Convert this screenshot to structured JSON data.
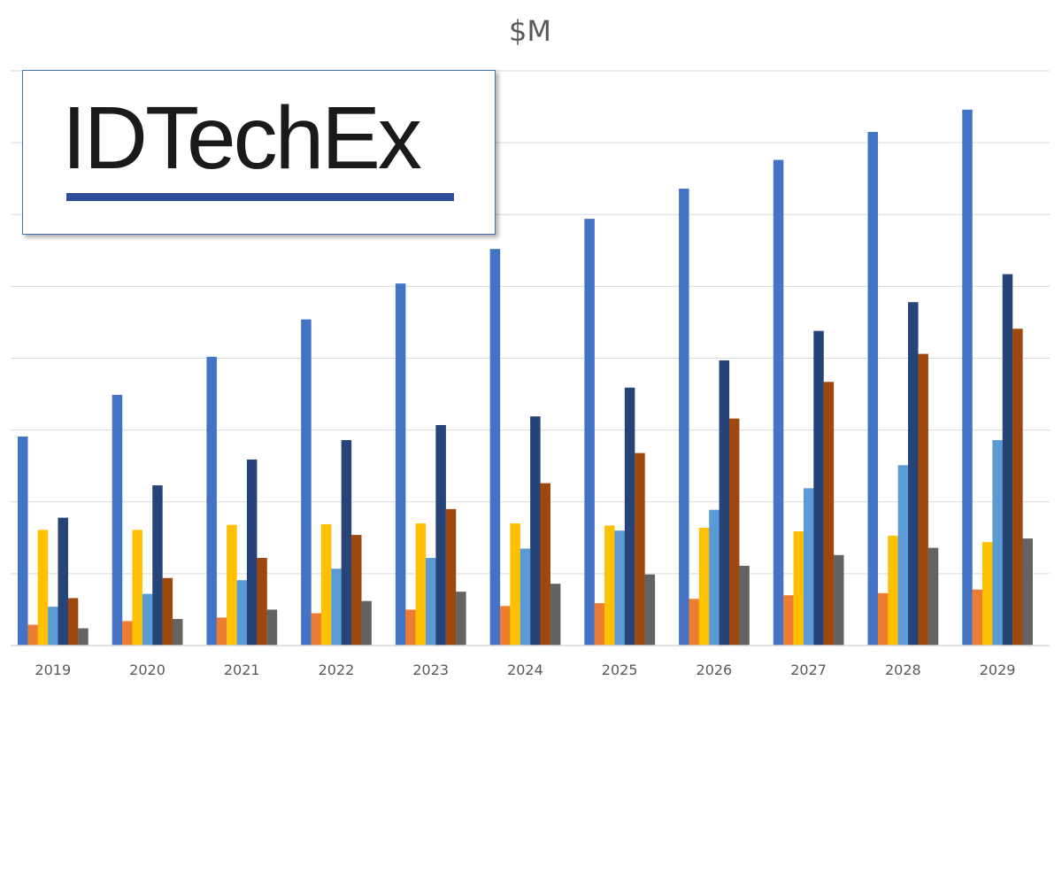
{
  "logo": {
    "text": "IDTechEx",
    "underline_color": "#2e4d9b",
    "border_color": "#4a6fb5"
  },
  "chart_data": {
    "type": "bar",
    "title": "$M",
    "xlabel": "",
    "ylabel": "",
    "categories": [
      "2019",
      "2020",
      "2021",
      "2022",
      "2023",
      "2024",
      "2025",
      "2026",
      "2027",
      "2028",
      "2029"
    ],
    "ylim": [
      0,
      8
    ],
    "gridlines": true,
    "y_tick_labels_shown": false,
    "legend": "none",
    "series": [
      {
        "color": "#4472c4",
        "values": [
          2.91,
          3.49,
          4.02,
          4.54,
          5.04,
          5.52,
          5.94,
          6.36,
          6.76,
          7.15,
          7.46
        ]
      },
      {
        "color": "#ed7d31",
        "values": [
          0.29,
          0.34,
          0.39,
          0.45,
          0.5,
          0.55,
          0.59,
          0.65,
          0.7,
          0.73,
          0.78
        ]
      },
      {
        "color": "#ffc000",
        "values": [
          1.61,
          1.61,
          1.68,
          1.69,
          1.7,
          1.7,
          1.67,
          1.64,
          1.59,
          1.53,
          1.44
        ]
      },
      {
        "color": "#5b9bd5",
        "values": [
          0.54,
          0.72,
          0.91,
          1.07,
          1.22,
          1.35,
          1.6,
          1.89,
          2.19,
          2.51,
          2.86
        ]
      },
      {
        "color": "#264478",
        "values": [
          1.78,
          2.23,
          2.59,
          2.86,
          3.07,
          3.19,
          3.59,
          3.97,
          4.38,
          4.78,
          5.17
        ]
      },
      {
        "color": "#9e480e",
        "values": [
          0.66,
          0.94,
          1.22,
          1.54,
          1.9,
          2.26,
          2.68,
          3.16,
          3.67,
          4.06,
          4.41
        ]
      },
      {
        "color": "#636363",
        "values": [
          0.24,
          0.37,
          0.5,
          0.62,
          0.75,
          0.86,
          0.99,
          1.11,
          1.26,
          1.36,
          1.49
        ]
      }
    ]
  }
}
